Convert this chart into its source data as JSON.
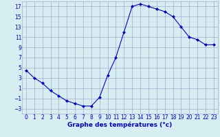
{
  "hours": [
    0,
    1,
    2,
    3,
    4,
    5,
    6,
    7,
    8,
    9,
    10,
    11,
    12,
    13,
    14,
    15,
    16,
    17,
    18,
    19,
    20,
    21,
    22,
    23
  ],
  "temperatures": [
    4.5,
    3.0,
    2.0,
    0.5,
    -0.5,
    -1.5,
    -2.0,
    -2.5,
    -2.5,
    -0.8,
    3.5,
    7.0,
    12.0,
    17.0,
    17.5,
    17.0,
    16.5,
    16.0,
    15.0,
    13.0,
    11.0,
    10.5,
    9.5,
    9.5
  ],
  "line_color": "#0000cc",
  "marker": "D",
  "marker_size": 2.0,
  "bg_color": "#d6eef2",
  "grid_color": "#aaaacc",
  "xlabel": "Graphe des températures (°c)",
  "xlabel_color": "#0000cc",
  "xlabel_fontsize": 6.5,
  "tick_color": "#0000cc",
  "tick_fontsize": 5.5,
  "ylim": [
    -4,
    18
  ],
  "yticks": [
    -3,
    -1,
    1,
    3,
    5,
    7,
    9,
    11,
    13,
    15,
    17
  ],
  "xlim": [
    -0.5,
    23.5
  ],
  "xticks": [
    0,
    1,
    2,
    3,
    4,
    5,
    6,
    7,
    8,
    9,
    10,
    11,
    12,
    13,
    14,
    15,
    16,
    17,
    18,
    19,
    20,
    21,
    22,
    23
  ]
}
